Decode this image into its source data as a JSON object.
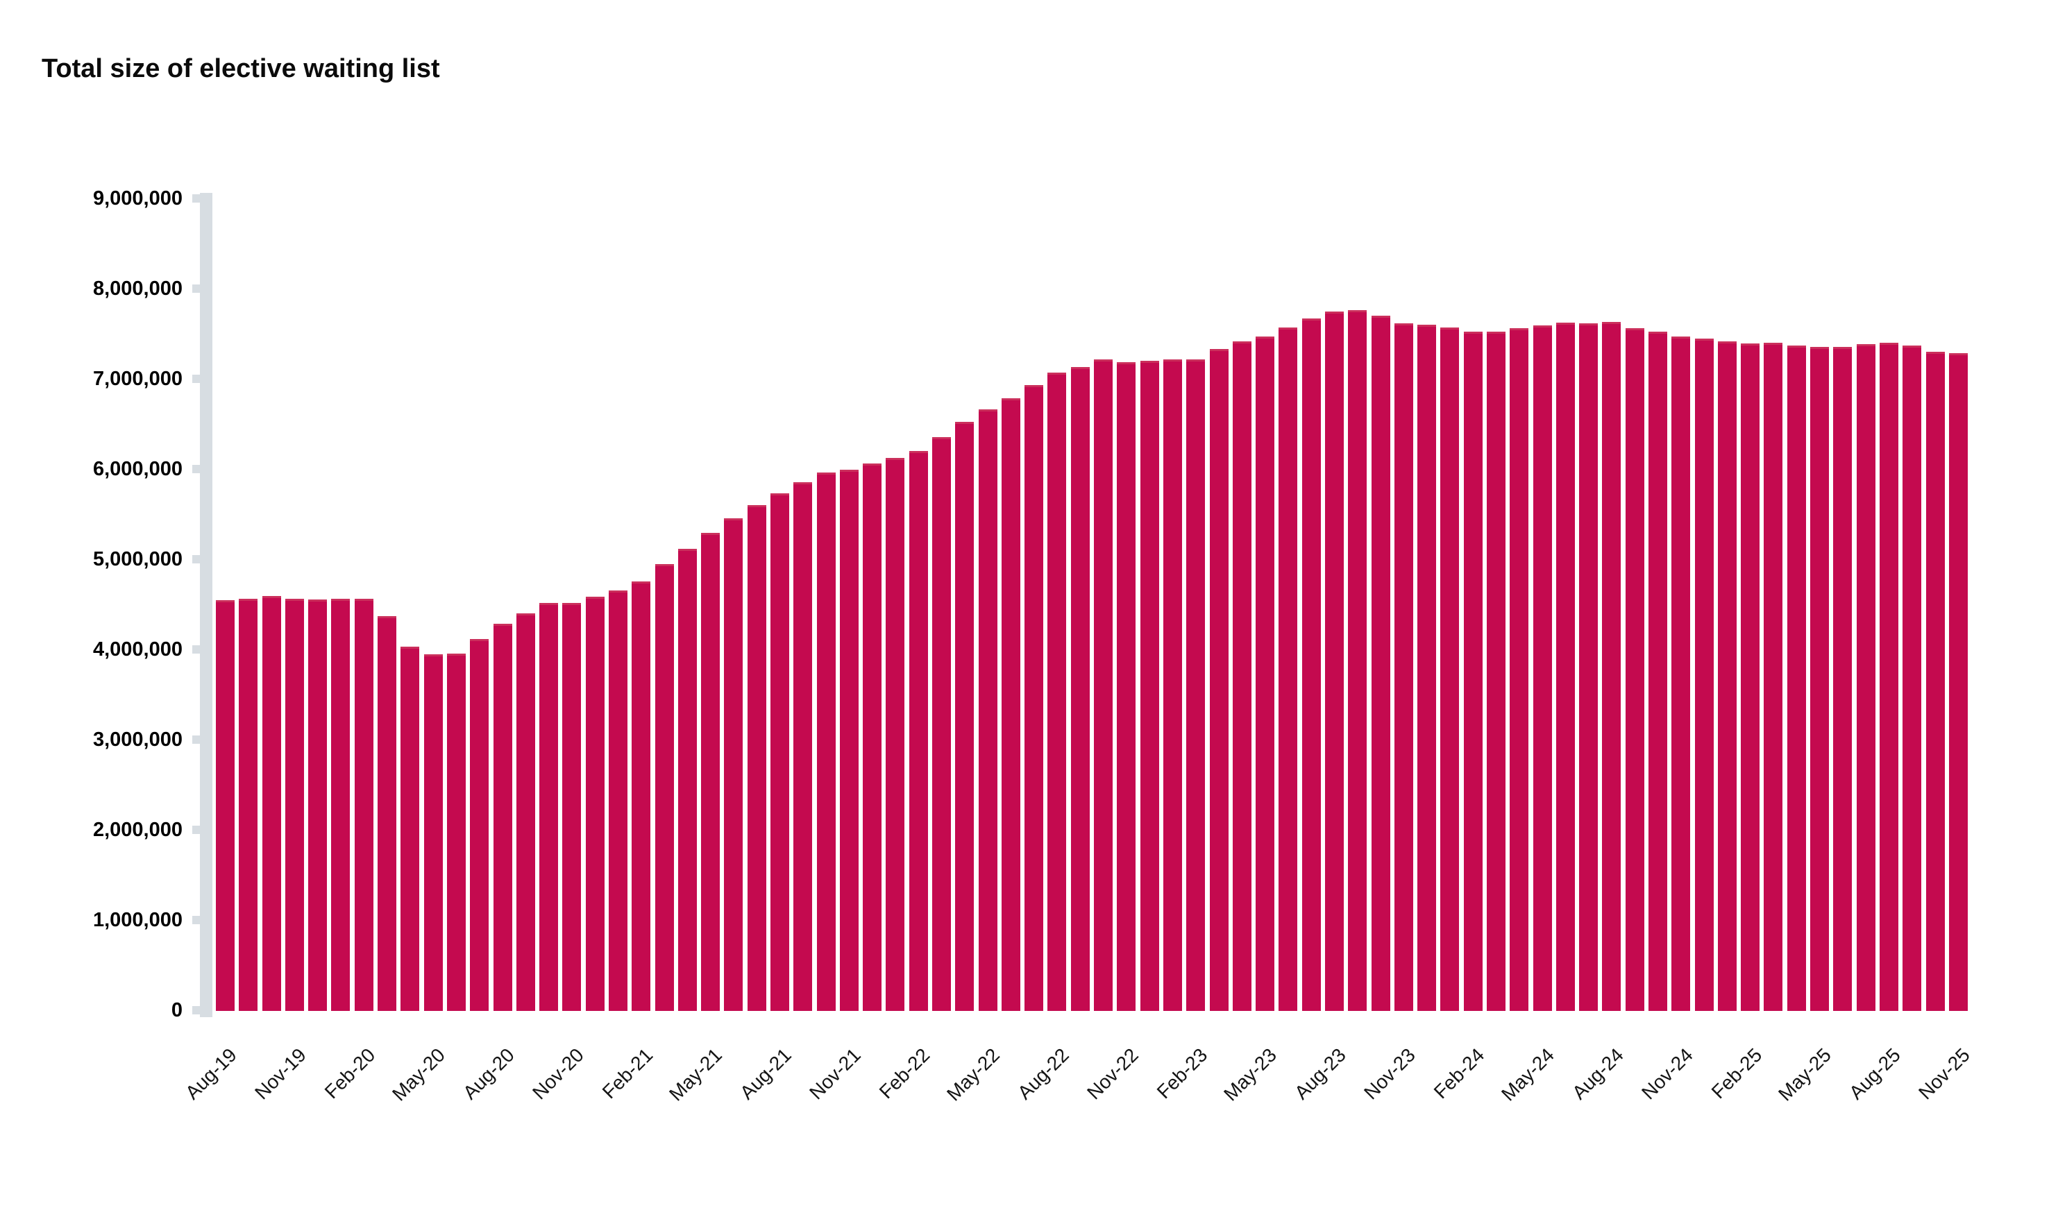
{
  "title": "Total size of elective waiting list",
  "colors": {
    "bar_fill": "#c40a4f",
    "bar_cap": "#cb2f5c",
    "axis": "#d7dde2",
    "text": "#0b0b0b",
    "background": "#ffffff"
  },
  "chart_data": {
    "type": "bar",
    "title": "Total size of elective waiting list",
    "xlabel": "",
    "ylabel": "",
    "ylim": [
      0,
      9000000
    ],
    "grid": false,
    "legend": null,
    "y_tick_labels_top_to_bottom": [
      "9,000,000",
      "8,000,000",
      "7,000,000",
      "6,000,000",
      "5,000,000",
      "4,000,000",
      "3,000,000",
      "2,000,000",
      "1,000,000",
      "0"
    ],
    "x_tick_every_n": 3,
    "x": [
      "Aug-19",
      "Sep-19",
      "Oct-19",
      "Nov-19",
      "Dec-19",
      "Jan-20",
      "Feb-20",
      "Mar-20",
      "Apr-20",
      "May-20",
      "Jun-20",
      "Jul-20",
      "Aug-20",
      "Sep-20",
      "Oct-20",
      "Nov-20",
      "Dec-20",
      "Jan-21",
      "Feb-21",
      "Mar-21",
      "Apr-21",
      "May-21",
      "Jun-21",
      "Jul-21",
      "Aug-21",
      "Sep-21",
      "Oct-21",
      "Nov-21",
      "Dec-21",
      "Jan-22",
      "Feb-22",
      "Mar-22",
      "Apr-22",
      "May-22",
      "Jun-22",
      "Jul-22",
      "Aug-22",
      "Sep-22",
      "Oct-22",
      "Nov-22",
      "Dec-22",
      "Jan-23",
      "Feb-23",
      "Mar-23",
      "Apr-23",
      "May-23",
      "Jun-23",
      "Jul-23",
      "Aug-23",
      "Sep-23",
      "Oct-23",
      "Nov-23",
      "Dec-23",
      "Jan-24",
      "Feb-24",
      "Mar-24",
      "Apr-24",
      "May-24",
      "Jun-24",
      "Jul-24",
      "Aug-24",
      "Sep-24",
      "Oct-24",
      "Nov-24",
      "Dec-24",
      "Jan-25",
      "Feb-25",
      "Mar-25",
      "Apr-25",
      "May-25",
      "Jun-25",
      "Jul-25",
      "Aug-25",
      "Sep-25",
      "Oct-25",
      "Nov-25"
    ],
    "x_tick_labels": [
      "Aug-19",
      "Nov-19",
      "Feb-20",
      "May-20",
      "Aug-20",
      "Nov-20",
      "Feb-21",
      "May-21",
      "Aug-21",
      "Nov-21",
      "Feb-22",
      "May-22",
      "Aug-22",
      "Nov-22",
      "Feb-23",
      "May-23",
      "Aug-23",
      "Nov-23",
      "Feb-24",
      "May-24",
      "Aug-24",
      "Nov-24",
      "Feb-25",
      "May-25",
      "Aug-25",
      "Nov-25"
    ],
    "values_millions": [
      4.55,
      4.57,
      4.6,
      4.57,
      4.56,
      4.57,
      4.57,
      4.38,
      4.04,
      3.95,
      3.96,
      4.12,
      4.29,
      4.41,
      4.52,
      4.52,
      4.59,
      4.66,
      4.76,
      4.95,
      5.12,
      5.3,
      5.46,
      5.61,
      5.74,
      5.86,
      5.97,
      6.0,
      6.07,
      6.13,
      6.21,
      6.36,
      6.53,
      6.67,
      6.79,
      6.94,
      7.08,
      7.14,
      7.22,
      7.19,
      7.21,
      7.22,
      7.22,
      7.34,
      7.42,
      7.48,
      7.58,
      7.68,
      7.75,
      7.77,
      7.71,
      7.62,
      7.61,
      7.58,
      7.53,
      7.53,
      7.57,
      7.6,
      7.63,
      7.62,
      7.64,
      7.57,
      7.53,
      7.48,
      7.45,
      7.42,
      7.4,
      7.41,
      7.38,
      7.36,
      7.36,
      7.39,
      7.41,
      7.38,
      7.31,
      7.29
    ]
  }
}
